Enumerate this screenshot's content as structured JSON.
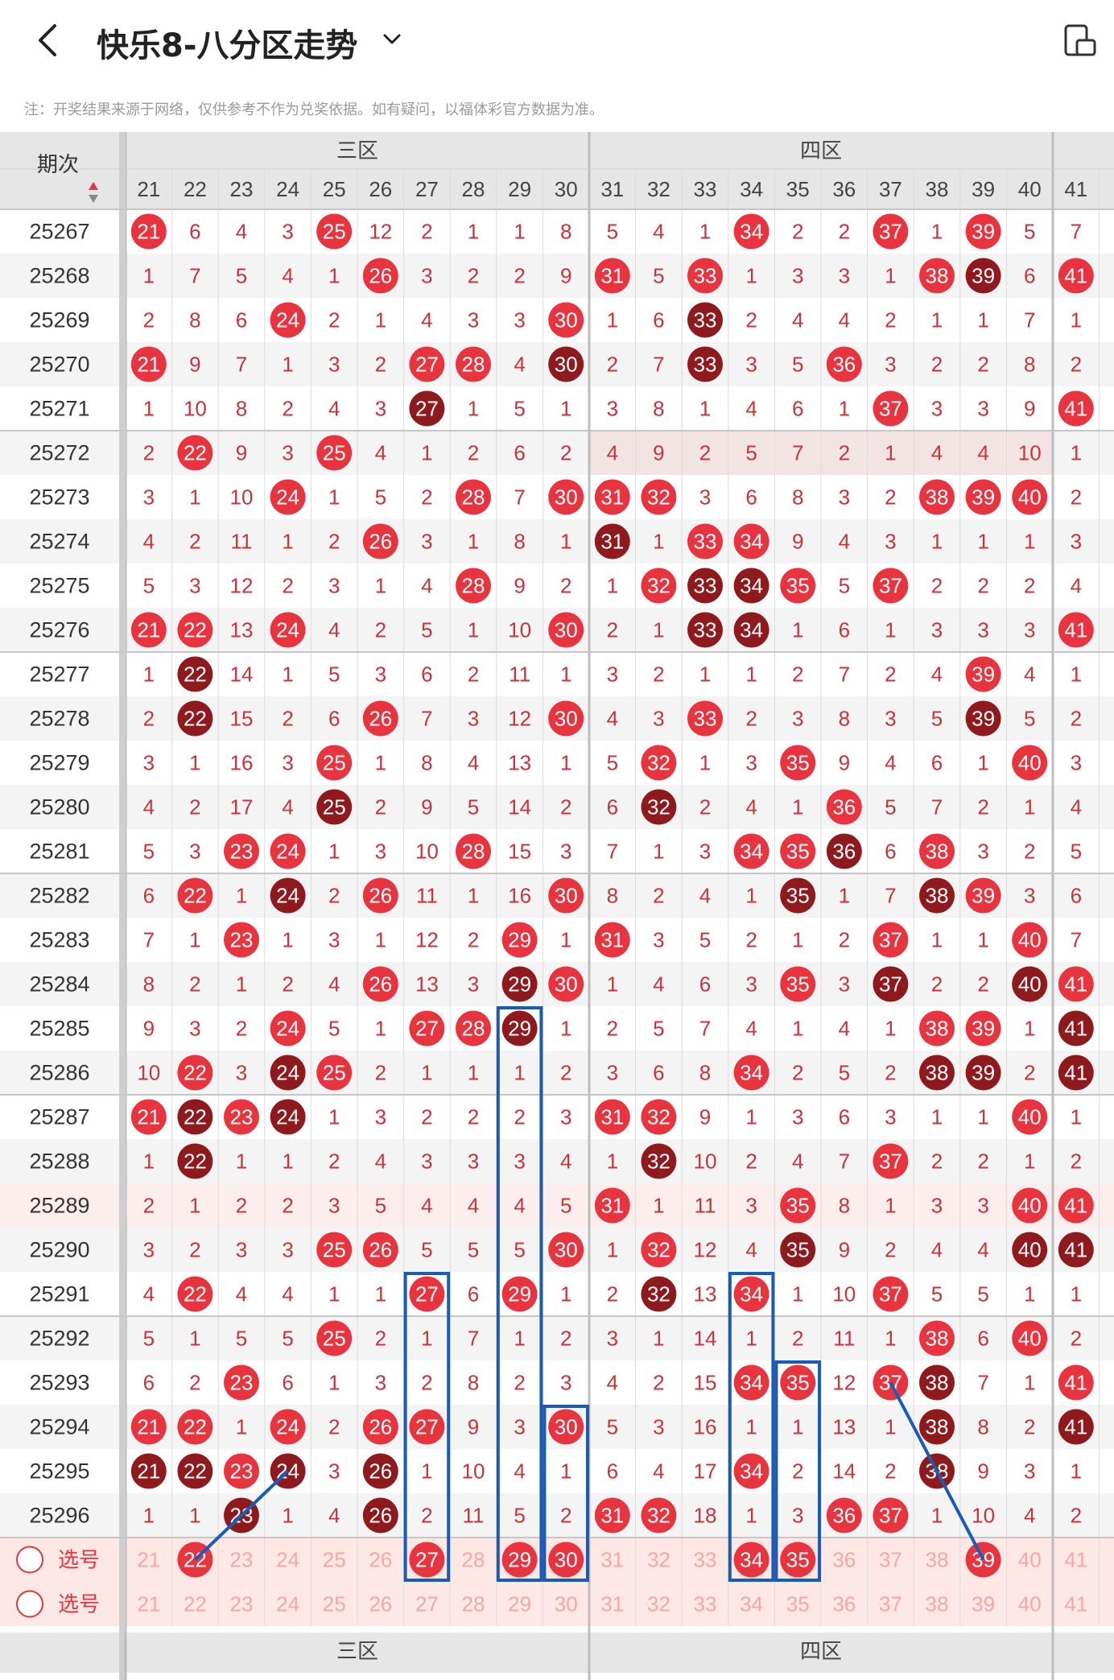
{
  "header": {
    "title": "快乐8-八分区走势",
    "note": "注：开奖结果来源于网络，仅供参考不作为兑奖依据。如有疑问，以福体彩官方数据为准。"
  },
  "table": {
    "period_header": "期次",
    "zones": [
      {
        "label": "三区",
        "from": 21,
        "to": 30
      },
      {
        "label": "四区",
        "from": 31,
        "to": 40
      }
    ],
    "columns": [
      "21",
      "22",
      "23",
      "24",
      "25",
      "26",
      "27",
      "28",
      "29",
      "30",
      "31",
      "32",
      "33",
      "34",
      "35",
      "36",
      "37",
      "38",
      "39",
      "40",
      "41"
    ],
    "select_label": "选号",
    "select_rows": [
      {
        "label": "选号",
        "picked": [
          "22",
          "27",
          "29",
          "30",
          "34",
          "35",
          "39"
        ]
      },
      {
        "label": "选号",
        "picked": []
      }
    ],
    "rows": [
      {
        "p": "25267",
        "c": [
          "21",
          "6",
          "4",
          "3",
          "25",
          "12",
          "2",
          "1",
          "1",
          "8",
          "5",
          "4",
          "1",
          "34",
          "2",
          "2",
          "37",
          "1",
          "39",
          "5",
          "7"
        ]
      },
      {
        "p": "25268",
        "c": [
          "1",
          "7",
          "5",
          "4",
          "1",
          "26",
          "3",
          "2",
          "2",
          "9",
          "31",
          "5",
          "33",
          "1",
          "3",
          "3",
          "1",
          "38",
          "39",
          "6",
          "41"
        ]
      },
      {
        "p": "25269",
        "c": [
          "2",
          "8",
          "6",
          "24",
          "2",
          "1",
          "4",
          "3",
          "3",
          "30",
          "1",
          "6",
          "33",
          "2",
          "4",
          "4",
          "2",
          "1",
          "1",
          "7",
          "1"
        ]
      },
      {
        "p": "25270",
        "c": [
          "21",
          "9",
          "7",
          "1",
          "3",
          "2",
          "27",
          "28",
          "4",
          "30",
          "2",
          "7",
          "33",
          "3",
          "5",
          "36",
          "3",
          "2",
          "2",
          "8",
          "2"
        ]
      },
      {
        "p": "25271",
        "c": [
          "1",
          "10",
          "8",
          "2",
          "4",
          "3",
          "27",
          "1",
          "5",
          "1",
          "3",
          "8",
          "1",
          "4",
          "6",
          "1",
          "37",
          "3",
          "3",
          "9",
          "41"
        ]
      },
      {
        "p": "25272",
        "c": [
          "2",
          "22",
          "9",
          "3",
          "25",
          "4",
          "1",
          "2",
          "6",
          "2",
          "4",
          "9",
          "2",
          "5",
          "7",
          "2",
          "1",
          "4",
          "4",
          "10",
          "1"
        ]
      },
      {
        "p": "25273",
        "c": [
          "3",
          "1",
          "10",
          "24",
          "1",
          "5",
          "2",
          "28",
          "7",
          "30",
          "31",
          "32",
          "3",
          "6",
          "8",
          "3",
          "2",
          "38",
          "39",
          "40",
          "2"
        ]
      },
      {
        "p": "25274",
        "c": [
          "4",
          "2",
          "11",
          "1",
          "2",
          "26",
          "3",
          "1",
          "8",
          "1",
          "31",
          "1",
          "33",
          "34",
          "9",
          "4",
          "3",
          "1",
          "1",
          "1",
          "3"
        ]
      },
      {
        "p": "25275",
        "c": [
          "5",
          "3",
          "12",
          "2",
          "3",
          "1",
          "4",
          "28",
          "9",
          "2",
          "1",
          "32",
          "33",
          "34",
          "35",
          "5",
          "37",
          "2",
          "2",
          "2",
          "4"
        ]
      },
      {
        "p": "25276",
        "c": [
          "21",
          "22",
          "13",
          "24",
          "4",
          "2",
          "5",
          "1",
          "10",
          "30",
          "2",
          "1",
          "33",
          "34",
          "1",
          "6",
          "1",
          "3",
          "3",
          "3",
          "41"
        ]
      },
      {
        "p": "25277",
        "c": [
          "1",
          "22",
          "14",
          "1",
          "5",
          "3",
          "6",
          "2",
          "11",
          "1",
          "3",
          "2",
          "1",
          "1",
          "2",
          "7",
          "2",
          "4",
          "39",
          "4",
          "1"
        ]
      },
      {
        "p": "25278",
        "c": [
          "2",
          "22",
          "15",
          "2",
          "6",
          "26",
          "7",
          "3",
          "12",
          "30",
          "4",
          "3",
          "33",
          "2",
          "3",
          "8",
          "3",
          "5",
          "39",
          "5",
          "2"
        ]
      },
      {
        "p": "25279",
        "c": [
          "3",
          "1",
          "16",
          "3",
          "25",
          "1",
          "8",
          "4",
          "13",
          "1",
          "5",
          "32",
          "1",
          "3",
          "35",
          "9",
          "4",
          "6",
          "1",
          "40",
          "3"
        ]
      },
      {
        "p": "25280",
        "c": [
          "4",
          "2",
          "17",
          "4",
          "25",
          "2",
          "9",
          "5",
          "14",
          "2",
          "6",
          "32",
          "2",
          "4",
          "1",
          "36",
          "5",
          "7",
          "2",
          "1",
          "4"
        ]
      },
      {
        "p": "25281",
        "c": [
          "5",
          "3",
          "23",
          "24",
          "1",
          "3",
          "10",
          "28",
          "15",
          "3",
          "7",
          "1",
          "3",
          "34",
          "35",
          "36",
          "6",
          "38",
          "3",
          "2",
          "5"
        ]
      },
      {
        "p": "25282",
        "c": [
          "6",
          "22",
          "1",
          "24",
          "2",
          "26",
          "11",
          "1",
          "16",
          "30",
          "8",
          "2",
          "4",
          "1",
          "35",
          "1",
          "7",
          "38",
          "39",
          "3",
          "6"
        ]
      },
      {
        "p": "25283",
        "c": [
          "7",
          "1",
          "23",
          "1",
          "3",
          "1",
          "12",
          "2",
          "29",
          "1",
          "31",
          "3",
          "5",
          "2",
          "1",
          "2",
          "37",
          "1",
          "1",
          "40",
          "7"
        ]
      },
      {
        "p": "25284",
        "c": [
          "8",
          "2",
          "1",
          "2",
          "4",
          "26",
          "13",
          "3",
          "29",
          "30",
          "1",
          "4",
          "6",
          "3",
          "35",
          "3",
          "37",
          "2",
          "2",
          "40",
          "41"
        ]
      },
      {
        "p": "25285",
        "c": [
          "9",
          "3",
          "2",
          "24",
          "5",
          "1",
          "27",
          "28",
          "29",
          "1",
          "2",
          "5",
          "7",
          "4",
          "1",
          "4",
          "1",
          "38",
          "39",
          "1",
          "41"
        ]
      },
      {
        "p": "25286",
        "c": [
          "10",
          "22",
          "3",
          "24",
          "25",
          "2",
          "1",
          "1",
          "1",
          "2",
          "3",
          "6",
          "8",
          "34",
          "2",
          "5",
          "2",
          "38",
          "39",
          "2",
          "41"
        ]
      },
      {
        "p": "25287",
        "c": [
          "21",
          "22",
          "23",
          "24",
          "1",
          "3",
          "2",
          "2",
          "2",
          "3",
          "31",
          "32",
          "9",
          "1",
          "3",
          "6",
          "3",
          "1",
          "1",
          "40",
          "1"
        ]
      },
      {
        "p": "25288",
        "c": [
          "1",
          "22",
          "1",
          "1",
          "2",
          "4",
          "3",
          "3",
          "3",
          "4",
          "1",
          "32",
          "10",
          "2",
          "4",
          "7",
          "37",
          "2",
          "2",
          "1",
          "2"
        ]
      },
      {
        "p": "25289",
        "c": [
          "2",
          "1",
          "2",
          "2",
          "3",
          "5",
          "4",
          "4",
          "4",
          "5",
          "31",
          "1",
          "11",
          "3",
          "35",
          "8",
          "1",
          "3",
          "3",
          "40",
          "41"
        ]
      },
      {
        "p": "25290",
        "c": [
          "3",
          "2",
          "3",
          "3",
          "25",
          "26",
          "5",
          "5",
          "5",
          "30",
          "1",
          "32",
          "12",
          "4",
          "35",
          "9",
          "2",
          "4",
          "4",
          "40",
          "41"
        ]
      },
      {
        "p": "25291",
        "c": [
          "4",
          "22",
          "4",
          "4",
          "1",
          "1",
          "27",
          "6",
          "29",
          "1",
          "2",
          "32",
          "13",
          "34",
          "1",
          "10",
          "37",
          "5",
          "5",
          "1",
          "1"
        ]
      },
      {
        "p": "25292",
        "c": [
          "5",
          "1",
          "5",
          "5",
          "25",
          "2",
          "1",
          "7",
          "1",
          "2",
          "3",
          "1",
          "14",
          "1",
          "2",
          "11",
          "1",
          "38",
          "6",
          "40",
          "2"
        ]
      },
      {
        "p": "25293",
        "c": [
          "6",
          "2",
          "23",
          "6",
          "1",
          "3",
          "2",
          "8",
          "2",
          "3",
          "4",
          "2",
          "15",
          "34",
          "35",
          "12",
          "37",
          "38",
          "7",
          "1",
          "41"
        ]
      },
      {
        "p": "25294",
        "c": [
          "21",
          "22",
          "1",
          "24",
          "2",
          "26",
          "27",
          "9",
          "3",
          "30",
          "5",
          "3",
          "16",
          "1",
          "1",
          "13",
          "1",
          "38",
          "8",
          "2",
          "41"
        ]
      },
      {
        "p": "25295",
        "c": [
          "21",
          "22",
          "23",
          "24",
          "3",
          "26",
          "1",
          "10",
          "4",
          "1",
          "6",
          "4",
          "17",
          "34",
          "2",
          "14",
          "2",
          "38",
          "9",
          "3",
          "1"
        ]
      },
      {
        "p": "25296",
        "c": [
          "1",
          "1",
          "23",
          "1",
          "4",
          "26",
          "2",
          "11",
          "5",
          "2",
          "31",
          "32",
          "18",
          "1",
          "3",
          "36",
          "37",
          "1",
          "10",
          "4",
          "2"
        ]
      }
    ]
  },
  "colors": {
    "hit": "#e8343f",
    "repeat": "#8e1a1e",
    "miss_text": "#c8343a",
    "line": "#1a5bb5",
    "header_bg": "#e6e6e6",
    "select_bg": "#fde8e6"
  }
}
